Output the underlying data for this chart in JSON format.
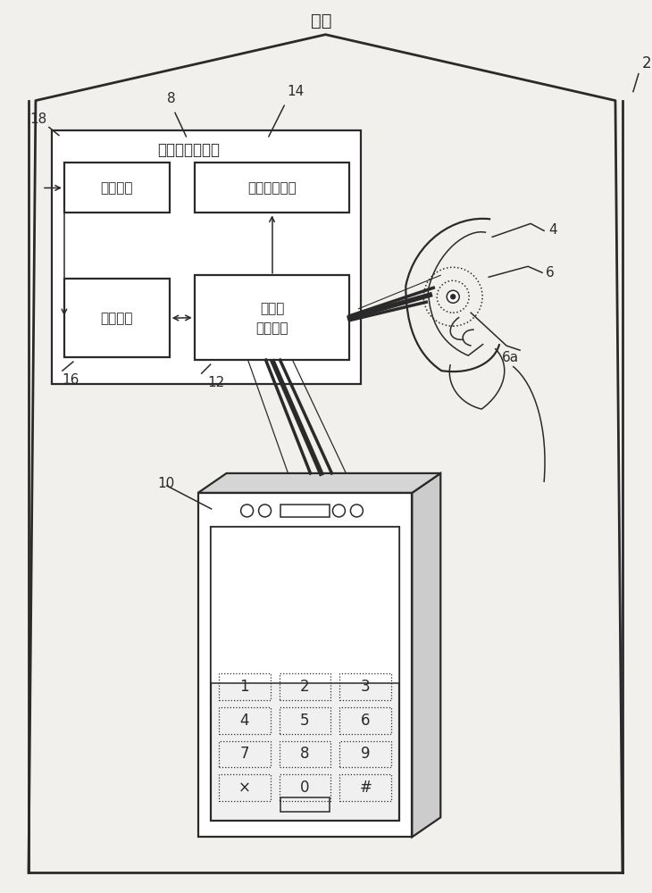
{
  "bg_color": "#f2f0ec",
  "line_color": "#2a2a2a",
  "title": "住所",
  "label_2": "2",
  "label_4": "4",
  "label_6": "6",
  "label_6a": "6a",
  "label_8": "8",
  "label_10": "10",
  "label_12": "12",
  "label_14": "14",
  "label_16": "16",
  "label_18": "18",
  "unit8_title": "住所内监视单元",
  "unit18_label": "存储单元",
  "unit14_label": "数字通信单元",
  "unit16_label": "控制单元",
  "unit12_label_1": "短距离",
  "unit12_label_2": "通信单元",
  "keypad_keys": [
    "1",
    "2",
    "3",
    "4",
    "5",
    "6",
    "7",
    "8",
    "9",
    "×",
    "0",
    "#"
  ]
}
